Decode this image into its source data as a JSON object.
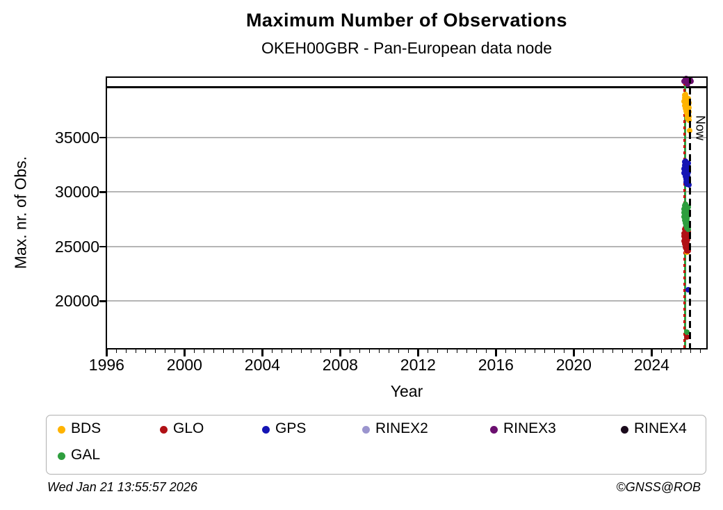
{
  "header": {
    "title": "Maximum Number of Observations",
    "subtitle": "OKEH00GBR - Pan-European data node"
  },
  "footer": {
    "timestamp": "Wed Jan 21 13:55:57 2026",
    "copyright": "©GNSS@ROB"
  },
  "legend": {
    "items": [
      {
        "label": "BDS",
        "color": "#FFB300"
      },
      {
        "label": "GLO",
        "color": "#B01015"
      },
      {
        "label": "GPS",
        "color": "#1414B4"
      },
      {
        "label": "RINEX2",
        "color": "#9B95CE"
      },
      {
        "label": "RINEX3",
        "color": "#6B0F6F"
      },
      {
        "label": "RINEX4",
        "color": "#1A0A1C"
      },
      {
        "label": "GAL",
        "color": "#2E9E3E"
      }
    ]
  },
  "chart_data": {
    "type": "scatter",
    "title": "Maximum Number of Observations",
    "subtitle": "OKEH00GBR - Pan-European data node",
    "xlabel": "Year",
    "ylabel": "Max. nr. of Obs.",
    "xlim": [
      1995.95,
      2026.88
    ],
    "ylim": [
      15570,
      40600
    ],
    "x_ticks_major": [
      1996,
      2000,
      2004,
      2008,
      2012,
      2016,
      2020,
      2024
    ],
    "x_minor_step": 0.5,
    "y_ticks_major": [
      20000,
      25000,
      30000,
      35000
    ],
    "grid": "horizontal-gray",
    "reference_line_y": 39650,
    "markers": {
      "now_line": {
        "x": 2025.97,
        "label": "Now",
        "style": "black-dashed"
      },
      "event_line_green": {
        "x": 2025.72,
        "style": "green-solid"
      },
      "event_line_red": {
        "x": 2025.69,
        "style": "red-dotted"
      }
    },
    "series": [
      {
        "name": "BDS",
        "color": "#FFB300",
        "points": [
          [
            2025.67,
            38300
          ],
          [
            2025.685,
            37900
          ],
          [
            2025.7,
            38620
          ],
          [
            2025.71,
            38880
          ],
          [
            2025.72,
            38150
          ],
          [
            2025.73,
            37680
          ],
          [
            2025.74,
            38480
          ],
          [
            2025.75,
            38920
          ],
          [
            2025.76,
            38230
          ],
          [
            2025.77,
            37420
          ],
          [
            2025.78,
            38060
          ],
          [
            2025.79,
            38720
          ],
          [
            2025.8,
            37240
          ],
          [
            2025.81,
            37820
          ],
          [
            2025.82,
            38420
          ],
          [
            2025.83,
            36980
          ],
          [
            2025.84,
            37560
          ],
          [
            2025.85,
            38260
          ],
          [
            2025.86,
            36780
          ],
          [
            2025.87,
            37120
          ],
          [
            2025.88,
            37960
          ],
          [
            2025.89,
            38560
          ],
          [
            2025.9,
            37340
          ],
          [
            2025.905,
            36880
          ],
          [
            2025.91,
            37720
          ],
          [
            2025.92,
            38180
          ],
          [
            2025.93,
            36560
          ],
          [
            2025.935,
            35660
          ],
          [
            2025.82,
            24500
          ]
        ]
      },
      {
        "name": "GLO",
        "color": "#B01015",
        "points": [
          [
            2025.66,
            25920
          ],
          [
            2025.67,
            25530
          ],
          [
            2025.68,
            26220
          ],
          [
            2025.69,
            26560
          ],
          [
            2025.7,
            25720
          ],
          [
            2025.71,
            25230
          ],
          [
            2025.72,
            26060
          ],
          [
            2025.73,
            26720
          ],
          [
            2025.74,
            25420
          ],
          [
            2025.75,
            24940
          ],
          [
            2025.76,
            25830
          ],
          [
            2025.77,
            26320
          ],
          [
            2025.78,
            24780
          ],
          [
            2025.79,
            25120
          ],
          [
            2025.8,
            25960
          ],
          [
            2025.81,
            24620
          ],
          [
            2025.82,
            25320
          ],
          [
            2025.83,
            26120
          ],
          [
            2025.84,
            24730
          ],
          [
            2025.85,
            25030
          ],
          [
            2025.86,
            25630
          ],
          [
            2025.87,
            26420
          ],
          [
            2025.88,
            24870
          ],
          [
            2025.89,
            24590
          ],
          [
            2025.82,
            16730
          ]
        ]
      },
      {
        "name": "GPS",
        "color": "#1414B4",
        "points": [
          [
            2025.67,
            32120
          ],
          [
            2025.68,
            31740
          ],
          [
            2025.69,
            32420
          ],
          [
            2025.7,
            32780
          ],
          [
            2025.71,
            31920
          ],
          [
            2025.72,
            31430
          ],
          [
            2025.73,
            32260
          ],
          [
            2025.74,
            32830
          ],
          [
            2025.75,
            31620
          ],
          [
            2025.76,
            31150
          ],
          [
            2025.77,
            32040
          ],
          [
            2025.78,
            32520
          ],
          [
            2025.79,
            30940
          ],
          [
            2025.8,
            31320
          ],
          [
            2025.81,
            32180
          ],
          [
            2025.82,
            30720
          ],
          [
            2025.83,
            31520
          ],
          [
            2025.84,
            32340
          ],
          [
            2025.85,
            30840
          ],
          [
            2025.86,
            31230
          ],
          [
            2025.87,
            31840
          ],
          [
            2025.88,
            32620
          ],
          [
            2025.89,
            31040
          ],
          [
            2025.9,
            30660
          ],
          [
            2025.89,
            21050
          ]
        ]
      },
      {
        "name": "RINEX2",
        "color": "#9B95CE",
        "points": []
      },
      {
        "name": "RINEX3",
        "color": "#6B0F6F",
        "points": [
          [
            2025.68,
            40150
          ],
          [
            2025.72,
            40320
          ],
          [
            2025.76,
            40430
          ],
          [
            2025.8,
            40240
          ],
          [
            2025.84,
            40090
          ],
          [
            2025.85,
            39900
          ],
          [
            2025.88,
            40340
          ],
          [
            2025.92,
            40190
          ],
          [
            2025.97,
            40270
          ],
          [
            2026.02,
            40130
          ]
        ]
      },
      {
        "name": "RINEX4",
        "color": "#1A0A1C",
        "points": []
      },
      {
        "name": "GAL",
        "color": "#2E9E3E",
        "points": [
          [
            2025.66,
            28120
          ],
          [
            2025.67,
            27730
          ],
          [
            2025.68,
            28420
          ],
          [
            2025.69,
            28780
          ],
          [
            2025.7,
            27920
          ],
          [
            2025.71,
            27430
          ],
          [
            2025.72,
            28260
          ],
          [
            2025.73,
            28870
          ],
          [
            2025.74,
            27620
          ],
          [
            2025.75,
            27140
          ],
          [
            2025.76,
            28030
          ],
          [
            2025.77,
            28520
          ],
          [
            2025.78,
            26920
          ],
          [
            2025.79,
            27320
          ],
          [
            2025.8,
            28160
          ],
          [
            2025.81,
            26720
          ],
          [
            2025.82,
            27520
          ],
          [
            2025.83,
            28330
          ],
          [
            2025.84,
            26830
          ],
          [
            2025.85,
            27230
          ],
          [
            2025.86,
            27830
          ],
          [
            2025.87,
            28620
          ],
          [
            2025.88,
            27030
          ],
          [
            2025.89,
            26620
          ],
          [
            2025.82,
            17150
          ]
        ]
      }
    ]
  }
}
